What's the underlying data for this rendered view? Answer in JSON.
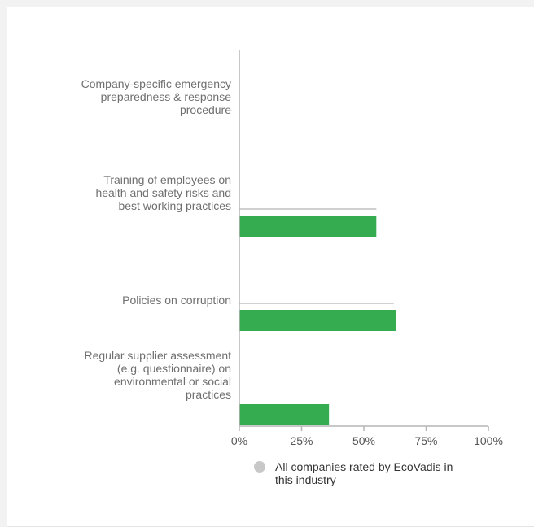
{
  "chart_data": {
    "type": "bar",
    "orientation": "horizontal",
    "categories": [
      [
        "Company-specific emergency",
        "preparedness & response",
        "procedure"
      ],
      [
        "Training of employees on",
        "health and safety risks and",
        "best working practices"
      ],
      [
        "Policies on corruption"
      ],
      [
        "Regular supplier assessment",
        "(e.g. questionnaire) on",
        "environmental or social",
        "practices"
      ]
    ],
    "series": [
      {
        "name": "All companies rated by EcoVadis in this industry",
        "values": [
          0,
          55,
          62,
          0
        ],
        "color": "#d0d0d0"
      },
      {
        "values": [
          0,
          55,
          63,
          36
        ],
        "color": "#34ac4f"
      }
    ],
    "xlim": [
      0,
      100
    ],
    "x_ticks": [
      "0%",
      "25%",
      "50%",
      "75%",
      "100%"
    ],
    "grid": false,
    "legend_position": "bottom"
  },
  "legend": {
    "line1": "All companies rated by EcoVadis in",
    "line2": "this industry"
  }
}
